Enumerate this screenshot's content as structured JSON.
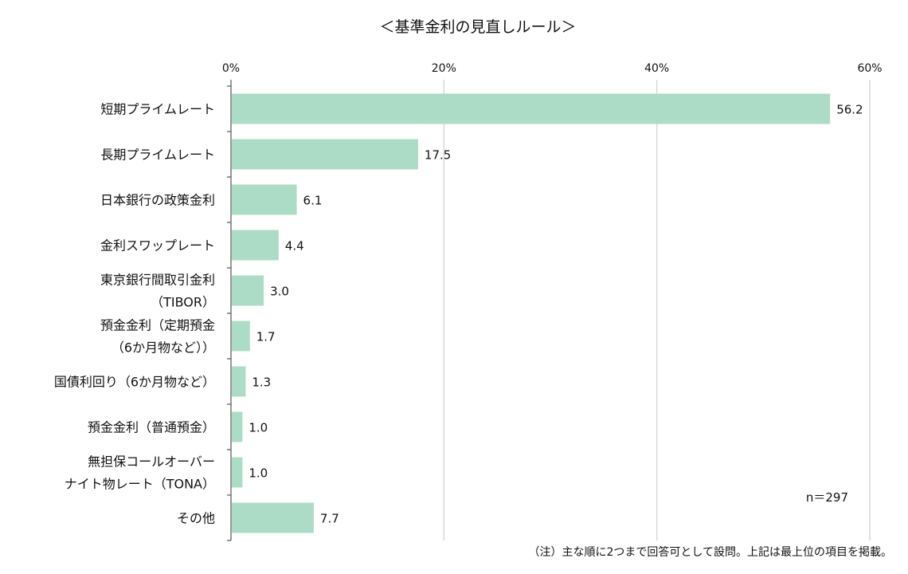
{
  "chart_data": {
    "type": "bar",
    "orientation": "horizontal",
    "title": "＜基準金利の見直しルール＞",
    "categories": [
      [
        "短期プライムレート"
      ],
      [
        "長期プライムレート"
      ],
      [
        "日本銀行の政策金利"
      ],
      [
        "金利スワップレート"
      ],
      [
        "東京銀行間取引金利",
        "（TIBOR）"
      ],
      [
        "預金金利（定期預金",
        "（6か月物など））"
      ],
      [
        "国債利回り（6か月物など）"
      ],
      [
        "預金金利（普通預金）"
      ],
      [
        "無担保コールオーバー",
        "ナイト物レート（TONA）"
      ],
      [
        "その他"
      ]
    ],
    "values": [
      56.2,
      17.5,
      6.1,
      4.4,
      3.0,
      1.7,
      1.3,
      1.0,
      1.0,
      7.7
    ],
    "value_labels": [
      "56.2",
      "17.5",
      "6.1",
      "4.4",
      "3.0",
      "1.7",
      "1.3",
      "1.0",
      "1.0",
      "7.7"
    ],
    "xlim": [
      0,
      60
    ],
    "xticks": [
      0,
      20,
      40,
      60
    ],
    "xtick_labels": [
      "0%",
      "20%",
      "40%",
      "60%"
    ],
    "x_axis_position": "top",
    "grid": true,
    "bar_color": "#acdcc6",
    "grid_color": "#d9d9d9",
    "annotation": "n＝297",
    "note": "（注）主な順に2つまで回答可として設問。上記は最上位の項目を掲載。"
  }
}
